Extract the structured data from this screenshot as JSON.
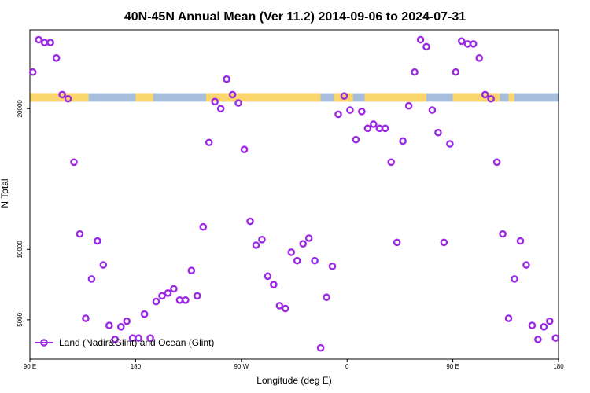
{
  "chart_data": {
    "type": "scatter",
    "title": "40N-45N Annual Mean (Ver 11.2)   2014-09-06 to 2024-07-31",
    "xlabel": "Longitude (deg E)",
    "ylabel": "N Total",
    "xlim": [
      90,
      450
    ],
    "ylim": [
      2200,
      25600
    ],
    "x_ticks": [
      {
        "value": 90,
        "label": "90 E"
      },
      {
        "value": 162,
        "label": "180"
      },
      {
        "value": 234,
        "label": "90 W"
      },
      {
        "value": 306,
        "label": "0"
      },
      {
        "value": 378,
        "label": "90 E"
      },
      {
        "value": 450,
        "label": "180"
      }
    ],
    "y_ticks": [
      {
        "value": 5000,
        "label": "5000"
      },
      {
        "value": 10000,
        "label": "10000"
      },
      {
        "value": 20000,
        "label": "20000"
      }
    ],
    "legend": {
      "label": "Land (Nadir&Glint) and Ocean (Glint)",
      "position": "bottom-left",
      "color": "#9a2be2"
    },
    "land_ocean_strip": {
      "y_range": [
        20500,
        21100
      ],
      "land_color": "#f9d56b",
      "ocean_color": "#a6bedc"
    },
    "series": [
      {
        "name": "Land (Nadir&Glint) and Ocean (Glint)",
        "color": "#9a2be2",
        "x": [
          92,
          96,
          100,
          104,
          108,
          112,
          116,
          120,
          124,
          128,
          132,
          136,
          140,
          144,
          148,
          152,
          156,
          160,
          164,
          168,
          172,
          176,
          180,
          184,
          188,
          192,
          196,
          200,
          204,
          208,
          212,
          216,
          220,
          224,
          228,
          232,
          236,
          240,
          244,
          248,
          252,
          256,
          260,
          264,
          268,
          272,
          276,
          280,
          284,
          288,
          292,
          296,
          300,
          304,
          308,
          312,
          316,
          320,
          324,
          328,
          332,
          336,
          340,
          344,
          348,
          352,
          356,
          360,
          364,
          368,
          372,
          376,
          380,
          384,
          388,
          392,
          396,
          400,
          404,
          408,
          412,
          416,
          420,
          424,
          428,
          432,
          436,
          440,
          444,
          448
        ],
        "y": [
          22600,
          24900,
          24700,
          24700,
          23600,
          21000,
          20700,
          16200,
          11100,
          5100,
          7900,
          10600,
          8900,
          4600,
          3600,
          4500,
          4900,
          3700,
          3700,
          5400,
          3700,
          6300,
          6700,
          6900,
          7200,
          6400,
          6400,
          8500,
          6700,
          11600,
          17600,
          20500,
          20000,
          22100,
          21000,
          20400,
          17100,
          12000,
          10300,
          10700,
          8100,
          7500,
          6000,
          5800,
          9800,
          9200,
          10400,
          10800,
          9200,
          3000,
          6600,
          8800,
          19600,
          20900,
          19900,
          17800,
          19800,
          18600,
          18900,
          18600,
          18600,
          16200,
          10500,
          17700,
          20200,
          22600,
          24900,
          24400,
          19900,
          18300,
          10500,
          17500,
          22600,
          24800,
          24600,
          24600,
          23600,
          21000,
          20700,
          16200,
          11100,
          5100,
          7900,
          10600,
          8900,
          4600,
          3600,
          4500,
          4900,
          3700
        ]
      }
    ]
  }
}
